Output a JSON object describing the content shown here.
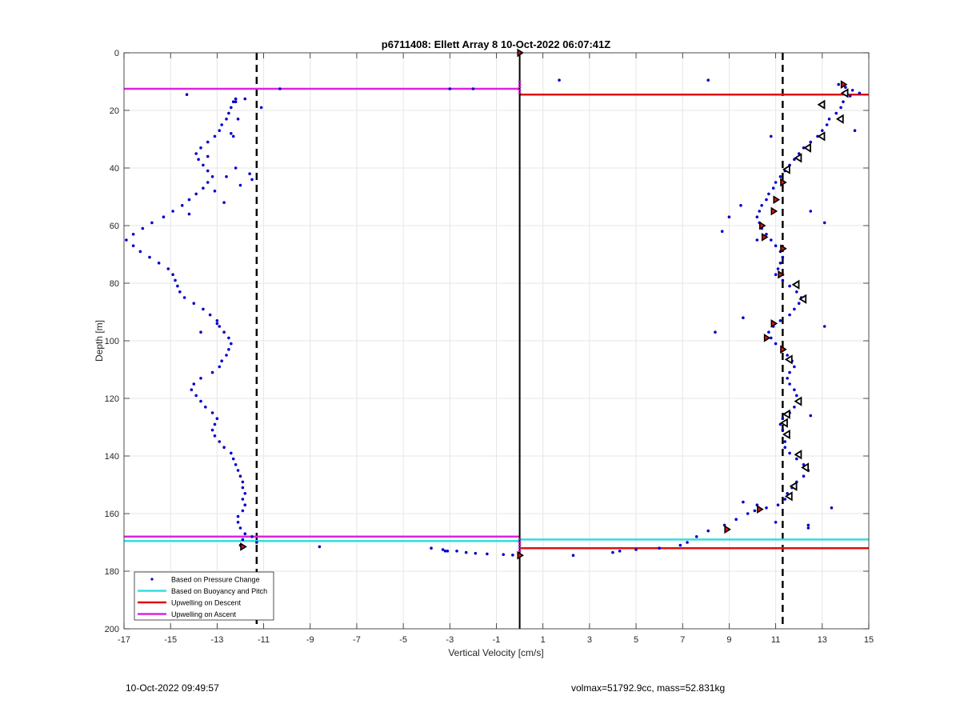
{
  "chart_data": {
    "type": "scatter",
    "title": "p6711408: Ellett Array 8 10-Oct-2022 06:07:41Z",
    "xlabel": "Vertical Velocity [cm/s]",
    "ylabel": "Depth [m]",
    "xlim": [
      -17,
      15
    ],
    "ylim": [
      0,
      200
    ],
    "y_reversed": true,
    "grid": true,
    "xticks": [
      -17,
      -15,
      -13,
      -11,
      -9,
      -7,
      -5,
      -3,
      -1,
      1,
      3,
      5,
      7,
      9,
      11,
      13,
      15
    ],
    "yticks": [
      0,
      20,
      40,
      60,
      80,
      100,
      120,
      140,
      160,
      180,
      200
    ],
    "legend_position": "bottom-left",
    "legend": [
      {
        "label": "Based on Pressure Change",
        "color": "#0000cc",
        "style": "dot"
      },
      {
        "label": "Based on Buoyancy and Pitch",
        "color": "#33dddd",
        "style": "line"
      },
      {
        "label": "Upwelling on Descent",
        "color": "#dd1111",
        "style": "line"
      },
      {
        "label": "Upwelling on Ascent",
        "color": "#dd22dd",
        "style": "line"
      }
    ],
    "zero_line": 0,
    "dashed_lines": [
      -11.3,
      11.3
    ],
    "hlines": [
      {
        "series": "Upwelling on Ascent",
        "y": 12.5,
        "x": [
          -17,
          0
        ],
        "color": "#dd22dd"
      },
      {
        "series": "Upwelling on Descent",
        "y": 14.5,
        "x": [
          0,
          15
        ],
        "color": "#dd1111"
      },
      {
        "series": "Upwelling on Ascent",
        "y": 168,
        "x": [
          -17,
          0
        ],
        "color": "#dd22dd"
      },
      {
        "series": "Based on Buoyancy and Pitch",
        "y": 169.5,
        "x": [
          -17,
          0
        ],
        "color": "#33dddd"
      },
      {
        "series": "Based on Buoyancy and Pitch",
        "y": 169,
        "x": [
          0,
          15
        ],
        "color": "#33dddd"
      },
      {
        "series": "Upwelling on Descent",
        "y": 172,
        "x": [
          0,
          15
        ],
        "color": "#dd1111"
      }
    ],
    "ascent_profile": [
      [
        -12.0,
        171
      ],
      [
        -11.9,
        169
      ],
      [
        -11.8,
        167
      ],
      [
        -12.0,
        165
      ],
      [
        -12.1,
        163
      ],
      [
        -12.1,
        161
      ],
      [
        -11.9,
        159
      ],
      [
        -11.8,
        157
      ],
      [
        -11.9,
        155
      ],
      [
        -11.8,
        153
      ],
      [
        -11.9,
        151
      ],
      [
        -11.9,
        149
      ],
      [
        -12.0,
        147
      ],
      [
        -12.1,
        145
      ],
      [
        -12.2,
        143
      ],
      [
        -12.3,
        141
      ],
      [
        -12.4,
        139
      ],
      [
        -12.7,
        137
      ],
      [
        -12.9,
        135
      ],
      [
        -13.1,
        133
      ],
      [
        -13.2,
        131
      ],
      [
        -13.1,
        129
      ],
      [
        -13.0,
        127
      ],
      [
        -13.2,
        125
      ],
      [
        -13.5,
        123
      ],
      [
        -13.7,
        121
      ],
      [
        -13.9,
        119
      ],
      [
        -14.1,
        117
      ],
      [
        -14.0,
        115
      ],
      [
        -13.7,
        113
      ],
      [
        -13.2,
        111
      ],
      [
        -12.9,
        109
      ],
      [
        -12.8,
        107
      ],
      [
        -12.6,
        105
      ],
      [
        -12.5,
        103
      ],
      [
        -12.4,
        101
      ],
      [
        -12.5,
        99
      ],
      [
        -12.7,
        97
      ],
      [
        -12.9,
        95
      ],
      [
        -13.0,
        93
      ],
      [
        -13.3,
        91
      ],
      [
        -13.6,
        89
      ],
      [
        -14.0,
        87
      ],
      [
        -14.4,
        85
      ],
      [
        -14.6,
        83
      ],
      [
        -14.7,
        81
      ],
      [
        -14.8,
        79
      ],
      [
        -14.9,
        77
      ],
      [
        -15.1,
        75
      ],
      [
        -15.5,
        73
      ],
      [
        -15.9,
        71
      ],
      [
        -16.3,
        69
      ],
      [
        -16.6,
        67
      ],
      [
        -16.9,
        65
      ],
      [
        -16.6,
        63
      ],
      [
        -16.2,
        61
      ],
      [
        -15.8,
        59
      ],
      [
        -15.3,
        57
      ],
      [
        -14.9,
        55
      ],
      [
        -14.5,
        53
      ],
      [
        -14.2,
        51
      ],
      [
        -13.9,
        49
      ],
      [
        -13.6,
        47
      ],
      [
        -13.4,
        45
      ],
      [
        -13.2,
        43
      ],
      [
        -13.4,
        41
      ],
      [
        -13.6,
        39
      ],
      [
        -13.8,
        37
      ],
      [
        -13.9,
        35
      ],
      [
        -13.7,
        33
      ],
      [
        -13.4,
        31
      ],
      [
        -13.1,
        29
      ],
      [
        -12.9,
        27
      ],
      [
        -12.8,
        25
      ],
      [
        -12.6,
        23
      ],
      [
        -12.5,
        21
      ],
      [
        -12.4,
        19
      ],
      [
        -12.3,
        17
      ],
      [
        -12.2,
        16
      ],
      [
        -14.3,
        14.5
      ],
      [
        -10.3,
        12.5
      ],
      [
        -11.1,
        19
      ],
      [
        -11.6,
        42
      ],
      [
        -11.5,
        44
      ],
      [
        -12.0,
        46
      ],
      [
        -12.6,
        43
      ],
      [
        -12.1,
        23
      ],
      [
        -12.4,
        28
      ],
      [
        -13.4,
        36
      ],
      [
        -12.2,
        17
      ],
      [
        -11.8,
        16
      ],
      [
        -12.2,
        40
      ],
      [
        -13.1,
        48
      ],
      [
        -12.7,
        52
      ],
      [
        -14.2,
        56
      ],
      [
        -13.0,
        94
      ],
      [
        -13.7,
        97
      ],
      [
        -12.3,
        29
      ],
      [
        -11.5,
        168
      ],
      [
        -11.3,
        170
      ]
    ],
    "descent_profile": [
      [
        13.7,
        11
      ],
      [
        14.0,
        12
      ],
      [
        14.3,
        13
      ],
      [
        14.6,
        14
      ],
      [
        14.2,
        15
      ],
      [
        13.9,
        17
      ],
      [
        13.8,
        19
      ],
      [
        13.6,
        21
      ],
      [
        13.3,
        23
      ],
      [
        13.2,
        25
      ],
      [
        13.0,
        27
      ],
      [
        12.8,
        29
      ],
      [
        12.5,
        31
      ],
      [
        12.2,
        33
      ],
      [
        12.0,
        35
      ],
      [
        11.8,
        37
      ],
      [
        11.6,
        39
      ],
      [
        11.4,
        41
      ],
      [
        11.2,
        43
      ],
      [
        11.0,
        45
      ],
      [
        10.9,
        47
      ],
      [
        10.7,
        49
      ],
      [
        10.6,
        51
      ],
      [
        10.4,
        53
      ],
      [
        10.3,
        55
      ],
      [
        10.2,
        57
      ],
      [
        10.3,
        59
      ],
      [
        10.4,
        61
      ],
      [
        10.6,
        63
      ],
      [
        10.8,
        65
      ],
      [
        11.0,
        67
      ],
      [
        11.2,
        69
      ],
      [
        11.3,
        71
      ],
      [
        11.2,
        73
      ],
      [
        11.1,
        75
      ],
      [
        11.0,
        77
      ],
      [
        11.3,
        79
      ],
      [
        11.6,
        81
      ],
      [
        11.9,
        83
      ],
      [
        12.1,
        85
      ],
      [
        12.0,
        87
      ],
      [
        11.8,
        89
      ],
      [
        11.6,
        91
      ],
      [
        11.2,
        93
      ],
      [
        10.9,
        95
      ],
      [
        10.7,
        97
      ],
      [
        10.8,
        99
      ],
      [
        11.0,
        101
      ],
      [
        11.3,
        103
      ],
      [
        11.5,
        105
      ],
      [
        11.7,
        107
      ],
      [
        11.8,
        109
      ],
      [
        11.6,
        111
      ],
      [
        11.5,
        113
      ],
      [
        11.6,
        115
      ],
      [
        11.8,
        117
      ],
      [
        11.9,
        119
      ],
      [
        12.0,
        121
      ],
      [
        11.8,
        123
      ],
      [
        11.5,
        125
      ],
      [
        11.3,
        127
      ],
      [
        11.2,
        129
      ],
      [
        11.3,
        131
      ],
      [
        11.5,
        133
      ],
      [
        11.4,
        135
      ],
      [
        11.4,
        137
      ],
      [
        11.6,
        139
      ],
      [
        11.9,
        141
      ],
      [
        12.2,
        143
      ],
      [
        12.4,
        145
      ],
      [
        12.2,
        147
      ],
      [
        11.9,
        149
      ],
      [
        11.7,
        151
      ],
      [
        11.5,
        153
      ],
      [
        11.4,
        155
      ],
      [
        11.1,
        157
      ],
      [
        10.6,
        158
      ],
      [
        10.1,
        159
      ],
      [
        9.8,
        160
      ],
      [
        9.3,
        162
      ],
      [
        8.8,
        164
      ],
      [
        8.1,
        166
      ],
      [
        7.6,
        168
      ],
      [
        7.2,
        170
      ],
      [
        6.9,
        171
      ],
      [
        6.0,
        172
      ],
      [
        5.0,
        172.5
      ],
      [
        4.3,
        173
      ],
      [
        4.0,
        173.5
      ],
      [
        8.1,
        9.5
      ],
      [
        1.7,
        9.5
      ],
      [
        14.4,
        27
      ],
      [
        13.1,
        59
      ],
      [
        12.5,
        126
      ],
      [
        12.4,
        164
      ],
      [
        12.4,
        165
      ],
      [
        13.4,
        158
      ],
      [
        8.4,
        97
      ],
      [
        9.6,
        92
      ],
      [
        8.7,
        62
      ],
      [
        9.0,
        57
      ],
      [
        9.5,
        53
      ],
      [
        10.8,
        29
      ],
      [
        11.6,
        125
      ],
      [
        13.1,
        95
      ],
      [
        12.5,
        55
      ],
      [
        10.2,
        65
      ],
      [
        9.6,
        156
      ],
      [
        10.2,
        157
      ],
      [
        11.0,
        163
      ],
      [
        2.3,
        174.5
      ]
    ],
    "surface_points": [
      [
        -3.0,
        12.5
      ],
      [
        -2.0,
        12.5
      ],
      [
        -8.6,
        171.5
      ],
      [
        -3.8,
        172
      ],
      [
        -3.3,
        172.5
      ],
      [
        -3.1,
        173
      ],
      [
        -2.7,
        173
      ],
      [
        -2.3,
        173.5
      ],
      [
        -1.9,
        173.8
      ],
      [
        -1.4,
        174
      ],
      [
        -0.7,
        174.2
      ],
      [
        -0.3,
        174.4
      ],
      [
        -3.2,
        173
      ]
    ],
    "markers_red": [
      [
        0,
        0
      ],
      [
        13.9,
        11
      ],
      [
        11.3,
        45
      ],
      [
        11.0,
        51
      ],
      [
        10.9,
        55
      ],
      [
        10.4,
        60
      ],
      [
        10.5,
        64
      ],
      [
        11.3,
        68
      ],
      [
        11.2,
        77
      ],
      [
        10.9,
        94
      ],
      [
        10.6,
        99
      ],
      [
        11.3,
        103
      ],
      [
        10.3,
        158.5
      ],
      [
        8.9,
        165.5
      ],
      [
        -11.9,
        171.5
      ],
      [
        0,
        174.5
      ]
    ],
    "markers_open": [
      [
        14.0,
        14
      ],
      [
        13.0,
        18
      ],
      [
        13.8,
        23
      ],
      [
        13.0,
        29
      ],
      [
        12.4,
        33
      ],
      [
        12.0,
        36.5
      ],
      [
        11.5,
        40.5
      ],
      [
        11.9,
        80.5
      ],
      [
        12.2,
        85.5
      ],
      [
        11.6,
        106.5
      ],
      [
        12.0,
        121
      ],
      [
        11.5,
        125.5
      ],
      [
        11.4,
        128.5
      ],
      [
        11.5,
        132.5
      ],
      [
        12.0,
        139.5
      ],
      [
        12.3,
        144
      ],
      [
        11.8,
        150.5
      ],
      [
        11.6,
        154
      ]
    ]
  },
  "footer": {
    "timestamp": "10-Oct-2022 09:49:57",
    "summary": "volmax=51792.9cc, mass=52.831kg"
  },
  "colors": {
    "dots": "#0000cc",
    "grid": "#e6e6e6",
    "axis": "#262626",
    "marker_fill": "#dd1111"
  }
}
